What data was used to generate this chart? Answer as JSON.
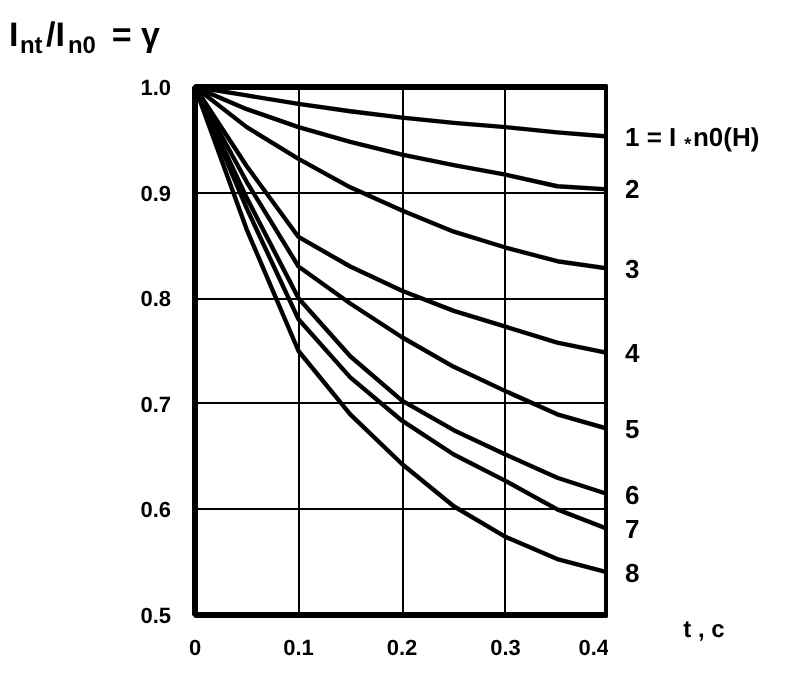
{
  "chart_data": {
    "type": "line",
    "ylabel": "I$_{nt}$/I$_{n0}$ = γ",
    "xlabel": "t , c",
    "x": [
      0,
      0.05,
      0.1,
      0.15,
      0.2,
      0.25,
      0.3,
      0.35,
      0.4
    ],
    "series": [
      {
        "name": "1 = I$_{*}$n0(H)",
        "color": "#000000",
        "values": [
          1.0,
          0.992,
          0.984,
          0.977,
          0.971,
          0.966,
          0.962,
          0.957,
          0.953
        ]
      },
      {
        "name": "2",
        "color": "#000000",
        "values": [
          1.0,
          0.979,
          0.962,
          0.948,
          0.936,
          0.926,
          0.917,
          0.906,
          0.903
        ]
      },
      {
        "name": "3",
        "color": "#000000",
        "values": [
          1.0,
          0.962,
          0.932,
          0.905,
          0.883,
          0.863,
          0.848,
          0.835,
          0.828
        ]
      },
      {
        "name": "4",
        "color": "#000000",
        "values": [
          1.0,
          0.925,
          0.858,
          0.83,
          0.807,
          0.788,
          0.773,
          0.758,
          0.748
        ]
      },
      {
        "name": "5",
        "color": "#000000",
        "values": [
          1.0,
          0.91,
          0.83,
          0.795,
          0.763,
          0.735,
          0.712,
          0.69,
          0.676
        ]
      },
      {
        "name": "6",
        "color": "#000000",
        "values": [
          1.0,
          0.895,
          0.8,
          0.745,
          0.703,
          0.675,
          0.652,
          0.63,
          0.614
        ]
      },
      {
        "name": "7",
        "color": "#000000",
        "values": [
          1.0,
          0.885,
          0.78,
          0.725,
          0.684,
          0.652,
          0.627,
          0.6,
          0.581
        ]
      },
      {
        "name": "8",
        "color": "#000000",
        "values": [
          1.0,
          0.865,
          0.75,
          0.69,
          0.643,
          0.603,
          0.574,
          0.553,
          0.54
        ]
      }
    ],
    "xlim": [
      0,
      0.4
    ],
    "ylim": [
      0.5,
      1.0
    ],
    "xticks": [
      0,
      0.1,
      0.2,
      0.3,
      0.4
    ],
    "yticks": [
      0.5,
      0.6,
      0.7,
      0.8,
      0.9,
      {
        "value": 1.0,
        "label": "1.0"
      }
    ],
    "grid": true,
    "line_style": "solid"
  }
}
